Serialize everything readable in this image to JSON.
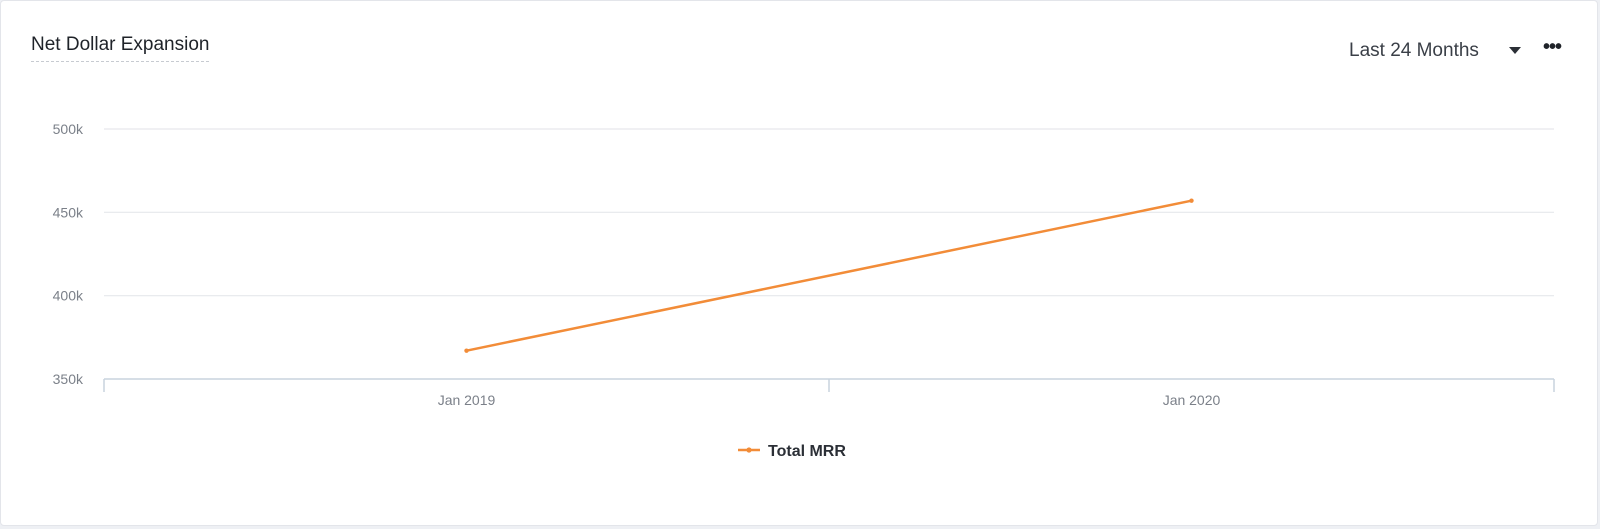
{
  "header": {
    "title": "Net Dollar Expansion",
    "range_label": "Last 24 Months",
    "more_label": "•••"
  },
  "chart_data": {
    "type": "line",
    "x": [
      "Jan 2019",
      "Jan 2020"
    ],
    "x_ticks": [
      "Jan 2019",
      "Jan 2020"
    ],
    "y_ticks": [
      "500k",
      "450k",
      "400k",
      "350k"
    ],
    "ylim": [
      350000,
      500000
    ],
    "series": [
      {
        "name": "Total MRR",
        "color": "#f28c38",
        "values": [
          367000,
          457000
        ]
      }
    ],
    "grid": true,
    "legend": "bottom-center"
  }
}
